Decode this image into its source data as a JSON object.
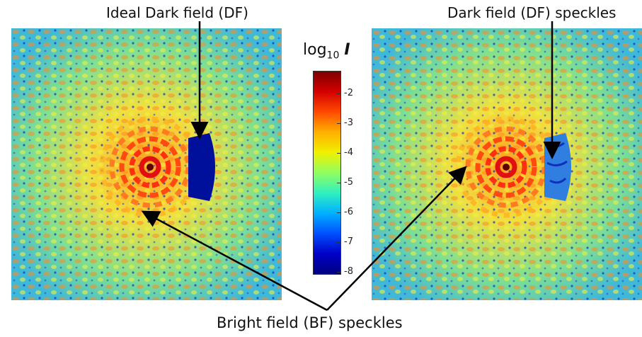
{
  "labels": {
    "ideal_df": "Ideal Dark field (DF)",
    "df_speckles": "Dark field (DF) speckles",
    "bf_speckles": "Bright field (BF) speckles"
  },
  "colorbar": {
    "title_prefix": "log",
    "title_sub": "10",
    "title_var": "I",
    "ticks": [
      "-2",
      "-3",
      "-4",
      "-5",
      "-6",
      "-7",
      "-8"
    ],
    "colors": [
      "#7f0000",
      "#d40000",
      "#ff4a00",
      "#ffb000",
      "#f0f000",
      "#90ff60",
      "#30f0c0",
      "#00b0ff",
      "#0050ff",
      "#0000c8",
      "#00007f"
    ]
  },
  "panels": {
    "background_color": "#55c8c8",
    "dark_hole_color": "#00109a"
  }
}
